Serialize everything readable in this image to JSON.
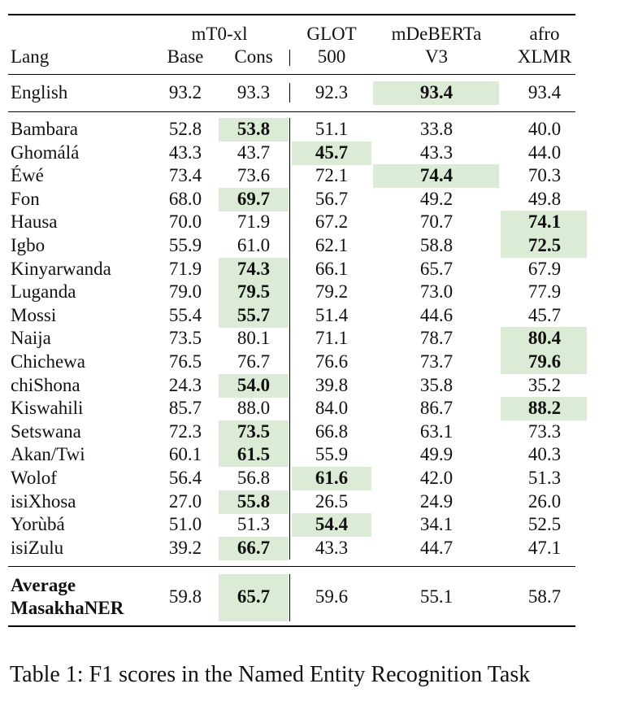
{
  "header": {
    "lang_label": "Lang",
    "group_label": "mT0-xl",
    "columns": [
      {
        "line1": "",
        "line2": "Base"
      },
      {
        "line1": "",
        "line2": "Cons"
      },
      {
        "line1": "GLOT",
        "line2": "500"
      },
      {
        "line1": "mDeBERTa",
        "line2": "V3"
      },
      {
        "line1": "afro",
        "line2": "XLMR"
      }
    ]
  },
  "highlight_color": "#dcebd6",
  "english_row": {
    "lang": "English",
    "values": [
      "93.2",
      "93.3",
      "92.3",
      "93.4",
      "93.4"
    ],
    "best": 3
  },
  "rows": [
    {
      "lang": "Bambara",
      "values": [
        "52.8",
        "53.8",
        "51.1",
        "33.8",
        "40.0"
      ],
      "best": 1
    },
    {
      "lang": "Ghomálá",
      "values": [
        "43.3",
        "43.7",
        "45.7",
        "43.3",
        "44.0"
      ],
      "best": 2
    },
    {
      "lang": "Éwé",
      "values": [
        "73.4",
        "73.6",
        "72.1",
        "74.4",
        "70.3"
      ],
      "best": 3
    },
    {
      "lang": "Fon",
      "values": [
        "68.0",
        "69.7",
        "56.7",
        "49.2",
        "49.8"
      ],
      "best": 1
    },
    {
      "lang": "Hausa",
      "values": [
        "70.0",
        "71.9",
        "67.2",
        "70.7",
        "74.1"
      ],
      "best": 4
    },
    {
      "lang": "Igbo",
      "values": [
        "55.9",
        "61.0",
        "62.1",
        "58.8",
        "72.5"
      ],
      "best": 4
    },
    {
      "lang": "Kinyarwanda",
      "values": [
        "71.9",
        "74.3",
        "66.1",
        "65.7",
        "67.9"
      ],
      "best": 1
    },
    {
      "lang": "Luganda",
      "values": [
        "79.0",
        "79.5",
        "79.2",
        "73.0",
        "77.9"
      ],
      "best": 1
    },
    {
      "lang": "Mossi",
      "values": [
        "55.4",
        "55.7",
        "51.4",
        "44.6",
        "45.7"
      ],
      "best": 1
    },
    {
      "lang": "Naija",
      "values": [
        "73.5",
        "80.1",
        "71.1",
        "78.7",
        "80.4"
      ],
      "best": 4
    },
    {
      "lang": "Chichewa",
      "values": [
        "76.5",
        "76.7",
        "76.6",
        "73.7",
        "79.6"
      ],
      "best": 4
    },
    {
      "lang": "chiShona",
      "values": [
        "24.3",
        "54.0",
        "39.8",
        "35.8",
        "35.2"
      ],
      "best": 1
    },
    {
      "lang": "Kiswahili",
      "values": [
        "85.7",
        "88.0",
        "84.0",
        "86.7",
        "88.2"
      ],
      "best": 4
    },
    {
      "lang": "Setswana",
      "values": [
        "72.3",
        "73.5",
        "66.8",
        "63.1",
        "73.3"
      ],
      "best": 1
    },
    {
      "lang": "Akan/Twi",
      "values": [
        "60.1",
        "61.5",
        "55.9",
        "49.9",
        "40.3"
      ],
      "best": 1
    },
    {
      "lang": "Wolof",
      "values": [
        "56.4",
        "56.8",
        "61.6",
        "42.0",
        "51.3"
      ],
      "best": 2
    },
    {
      "lang": "isiXhosa",
      "values": [
        "27.0",
        "55.8",
        "26.5",
        "24.9",
        "26.0"
      ],
      "best": 1
    },
    {
      "lang": "Yorùbá",
      "values": [
        "51.0",
        "51.3",
        "54.4",
        "34.1",
        "52.5"
      ],
      "best": 2
    },
    {
      "lang": "isiZulu",
      "values": [
        "39.2",
        "66.7",
        "43.3",
        "44.7",
        "47.1"
      ],
      "best": 1
    }
  ],
  "average_row": {
    "lang_line1": "Average",
    "lang_line2": "MasakhaNER",
    "values": [
      "59.8",
      "65.7",
      "59.6",
      "55.1",
      "58.7"
    ],
    "best": 1
  },
  "caption": "Table 1: F1 scores in the Named Entity Recognition Task"
}
